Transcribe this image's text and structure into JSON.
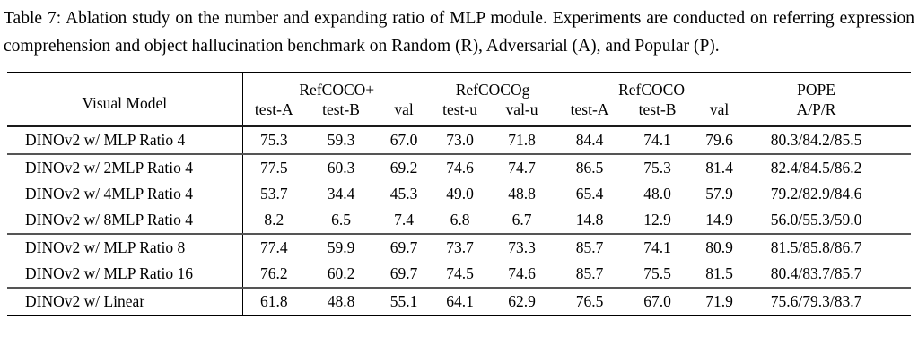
{
  "caption": "Table 7: Ablation study on the number and expanding ratio of MLP module. Experiments are conducted on referring expression comprehension and object hallucination benchmark on Random (R), Adversarial (A), and Popular (P).",
  "table": {
    "row_header": "Visual Model",
    "groups": [
      {
        "label": "RefCOCO+",
        "cols": [
          "test-A",
          "test-B",
          "val"
        ]
      },
      {
        "label": "RefCOCOg",
        "cols": [
          "test-u",
          "val-u"
        ]
      },
      {
        "label": "RefCOCO",
        "cols": [
          "test-A",
          "test-B",
          "val"
        ]
      },
      {
        "label": "POPE",
        "cols": [
          "A/P/R"
        ]
      }
    ],
    "sections": [
      {
        "rows": [
          {
            "model": "DINOv2 w/ MLP Ratio 4",
            "values": [
              "75.3",
              "59.3",
              "67.0",
              "73.0",
              "71.8",
              "84.4",
              "74.1",
              "79.6",
              "80.3/84.2/85.5"
            ]
          }
        ]
      },
      {
        "rows": [
          {
            "model": "DINOv2 w/ 2MLP Ratio 4",
            "values": [
              "77.5",
              "60.3",
              "69.2",
              "74.6",
              "74.7",
              "86.5",
              "75.3",
              "81.4",
              "82.4/84.5/86.2"
            ]
          },
          {
            "model": "DINOv2 w/ 4MLP Ratio 4",
            "values": [
              "53.7",
              "34.4",
              "45.3",
              "49.0",
              "48.8",
              "65.4",
              "48.0",
              "57.9",
              "79.2/82.9/84.6"
            ]
          },
          {
            "model": "DINOv2 w/ 8MLP Ratio 4",
            "values": [
              "8.2",
              "6.5",
              "7.4",
              "6.8",
              "6.7",
              "14.8",
              "12.9",
              "14.9",
              "56.0/55.3/59.0"
            ]
          }
        ]
      },
      {
        "rows": [
          {
            "model": "DINOv2 w/ MLP Ratio 8",
            "values": [
              "77.4",
              "59.9",
              "69.7",
              "73.7",
              "73.3",
              "85.7",
              "74.1",
              "80.9",
              "81.5/85.8/86.7"
            ]
          },
          {
            "model": "DINOv2 w/ MLP Ratio 16",
            "values": [
              "76.2",
              "60.2",
              "69.7",
              "74.5",
              "74.6",
              "85.7",
              "75.5",
              "81.5",
              "80.4/83.7/85.7"
            ]
          }
        ]
      },
      {
        "rows": [
          {
            "model": "DINOv2 w/ Linear",
            "values": [
              "61.8",
              "48.8",
              "55.1",
              "64.1",
              "62.9",
              "76.5",
              "67.0",
              "71.9",
              "75.6/79.3/83.7"
            ]
          }
        ]
      }
    ]
  }
}
